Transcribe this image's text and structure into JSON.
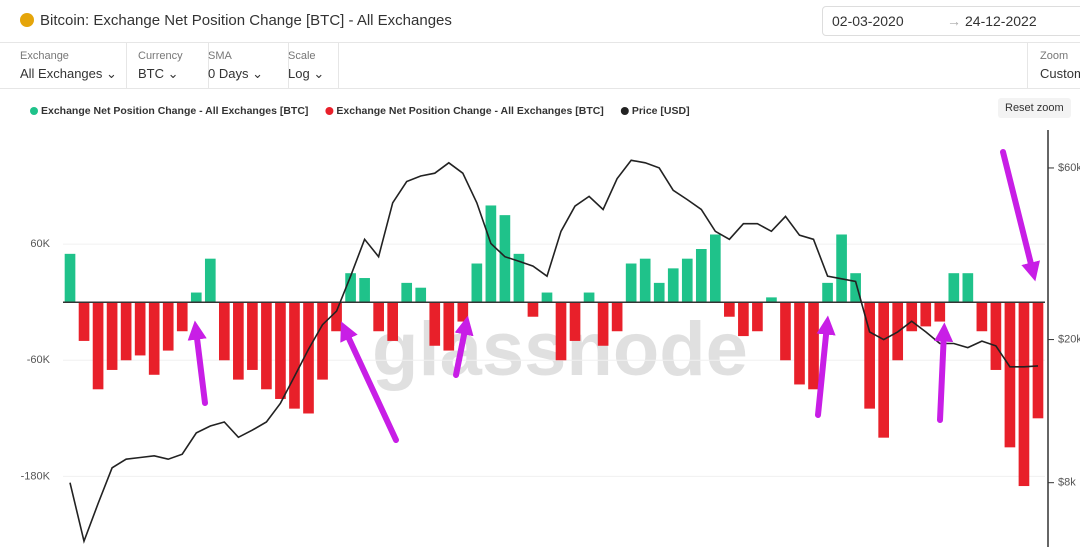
{
  "header": {
    "title": "Bitcoin: Exchange Net Position Change [BTC] - All Exchanges",
    "date_from": "02-03-2020",
    "date_to": "24-12-2022"
  },
  "controls": [
    {
      "label": "Exchange",
      "value": "All Exchanges"
    },
    {
      "label": "Currency",
      "value": "BTC"
    },
    {
      "label": "SMA",
      "value": "0 Days"
    },
    {
      "label": "Scale",
      "value": "Log"
    }
  ],
  "zoom": {
    "label": "Zoom",
    "value": "Custom"
  },
  "reset_zoom": "Reset zoom",
  "watermark": "glassnode",
  "chart_data": {
    "type": "bar",
    "categories": [
      null,
      null,
      null,
      null,
      null,
      null,
      null,
      null,
      null,
      null,
      null,
      null,
      null,
      null,
      null,
      null,
      null,
      null,
      null,
      null,
      null,
      null,
      null,
      null,
      null,
      null,
      null,
      null,
      null,
      null,
      null,
      null,
      null,
      null,
      null,
      null,
      null,
      null,
      null,
      null,
      null,
      null,
      null,
      null,
      null,
      null,
      null,
      null,
      null,
      null,
      null,
      null,
      null,
      null,
      null,
      null,
      null,
      null,
      null,
      null,
      null,
      null,
      null,
      null,
      null,
      null,
      null,
      null,
      null,
      null
    ],
    "series": [
      {
        "name": "Exchange Net Position Change - All Exchanges [BTC]",
        "color": "#1fc28a",
        "values": [
          50000,
          null,
          null,
          null,
          null,
          null,
          null,
          null,
          null,
          10000,
          45000,
          null,
          null,
          null,
          null,
          null,
          null,
          null,
          null,
          null,
          30000,
          25000,
          null,
          null,
          20000,
          15000,
          null,
          null,
          null,
          40000,
          100000,
          90000,
          50000,
          null,
          10000,
          null,
          null,
          10000,
          null,
          null,
          40000,
          45000,
          20000,
          35000,
          45000,
          55000,
          70000,
          null,
          null,
          null,
          5000,
          null,
          null,
          null,
          20000,
          70000,
          30000,
          null,
          null,
          null,
          null,
          null,
          null,
          30000,
          30000,
          null,
          null,
          null,
          null,
          null
        ]
      },
      {
        "name": "Exchange Net Position Change - All Exchanges [BTC]",
        "color": "#e8202a",
        "values": [
          null,
          -40000,
          -90000,
          -70000,
          -60000,
          -55000,
          -75000,
          -50000,
          -30000,
          null,
          null,
          -60000,
          -80000,
          -70000,
          -90000,
          -100000,
          -110000,
          -115000,
          -80000,
          -30000,
          null,
          null,
          -30000,
          -40000,
          null,
          null,
          -45000,
          -50000,
          -20000,
          null,
          null,
          null,
          null,
          -15000,
          null,
          -60000,
          -40000,
          null,
          -45000,
          -30000,
          null,
          null,
          null,
          null,
          null,
          null,
          null,
          -15000,
          -35000,
          -30000,
          null,
          -60000,
          -85000,
          -90000,
          null,
          null,
          null,
          -110000,
          -140000,
          -60000,
          -30000,
          -25000,
          -20000,
          null,
          null,
          -30000,
          -70000,
          -150000,
          -190000,
          -120000
        ]
      },
      {
        "name": "Price [USD]",
        "color": "#222222",
        "axis": "y2",
        "values": [
          8000,
          5500,
          7000,
          8800,
          9300,
          9400,
          9500,
          9300,
          9600,
          11000,
          11500,
          11800,
          10700,
          11200,
          11800,
          13300,
          15800,
          18800,
          22000,
          24000,
          30000,
          38000,
          34000,
          48000,
          55000,
          57000,
          58000,
          62000,
          58000,
          48000,
          37000,
          34000,
          33000,
          32000,
          30000,
          40000,
          47000,
          50000,
          46000,
          56000,
          63000,
          62000,
          60000,
          52000,
          49000,
          46000,
          40000,
          38000,
          42000,
          42000,
          40000,
          44000,
          39000,
          38000,
          30000,
          29500,
          29000,
          21000,
          20000,
          21000,
          22500,
          21000,
          19500,
          19500,
          19000,
          19800,
          19200,
          16800,
          16800,
          16900
        ]
      }
    ],
    "ylim": [
      -253000,
      178000
    ],
    "yticks": [
      {
        "value": 60000,
        "label": "60K"
      },
      {
        "value": -60000,
        "label": "-60K"
      },
      {
        "value": -180000,
        "label": "-180K"
      }
    ],
    "y2lim": [
      5300,
      76500
    ],
    "y2ticks": [
      {
        "value": 60000,
        "label": "$60k"
      },
      {
        "value": 20000,
        "label": "$20k"
      },
      {
        "value": 8000,
        "label": "$8k"
      }
    ],
    "y2log": true,
    "legend": "top-left"
  }
}
